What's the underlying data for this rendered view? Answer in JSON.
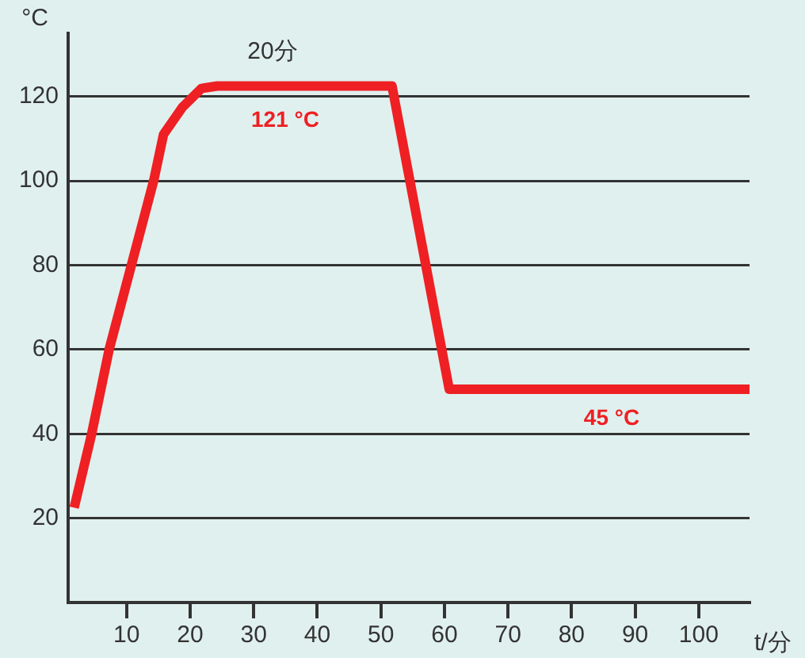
{
  "chart_data": {
    "type": "line",
    "xlabel": "t/分",
    "ylabel": "°C",
    "x": [
      1.75,
      4.5,
      7.25,
      14.25,
      15.8,
      18.75,
      21.75,
      24.25,
      51.75,
      60.75,
      108
    ],
    "series": [
      {
        "color": "#ee2024",
        "values": [
          22.5,
          40,
          60,
          100,
          111,
          117.4,
          121.9,
          122.5,
          122.5,
          50.6,
          50.6
        ]
      }
    ],
    "xlim": [
      0.8,
      108
    ],
    "xticks": [
      10,
      20,
      30,
      40,
      50,
      60,
      70,
      80,
      90,
      100
    ],
    "ylim": [
      0,
      135
    ],
    "yticks": [
      20,
      40,
      60,
      80,
      100,
      120
    ],
    "grid": "y",
    "legend": false,
    "marker": "none",
    "line_style": "solid",
    "annotations": [
      "20分",
      "121 °C",
      "45 °C"
    ]
  }
}
